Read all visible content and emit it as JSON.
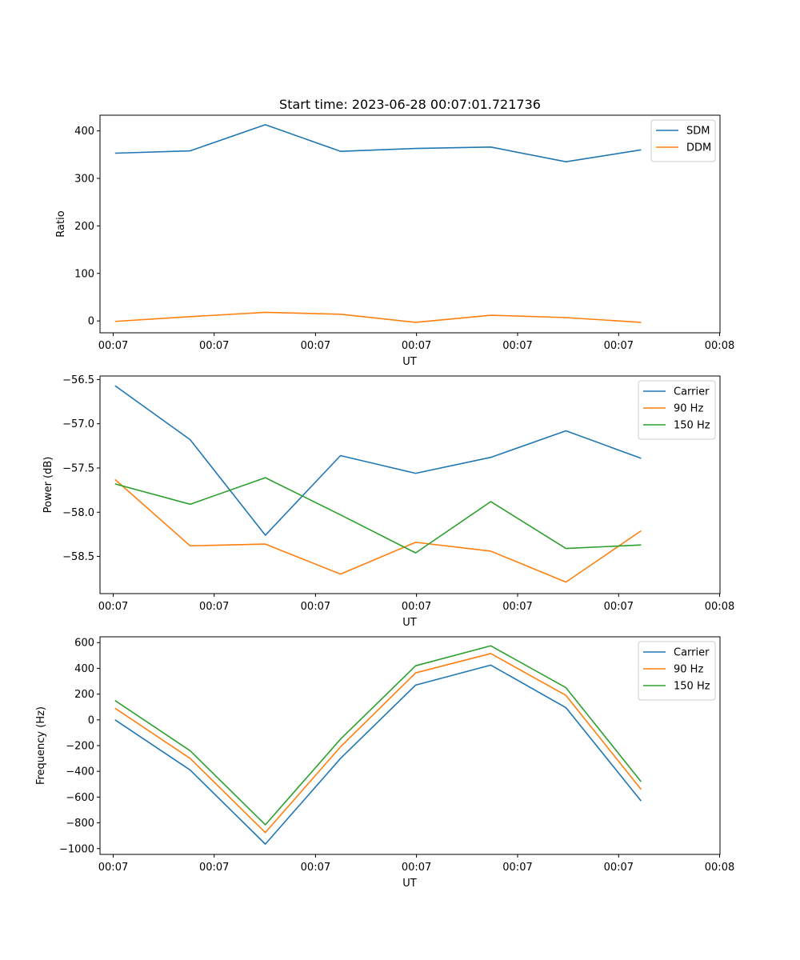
{
  "figure": {
    "title": "Start time: 2023-06-28 00:07:01.721736",
    "x_tick_labels": [
      "00:07",
      "00:07",
      "00:07",
      "00:07",
      "00:07",
      "00:07",
      "00:08"
    ]
  },
  "chart_data": [
    {
      "type": "line",
      "title": "Start time: 2023-06-28 00:07:01.721736",
      "xlabel": "UT",
      "ylabel": "Ratio",
      "x": [
        1,
        2,
        3,
        4,
        5,
        6,
        7,
        8
      ],
      "xlim": [
        0.8,
        9.05
      ],
      "ylim": [
        -25,
        433
      ],
      "yticks": [
        0,
        100,
        200,
        300,
        400
      ],
      "ytick_labels": [
        "0",
        "100",
        "200",
        "300",
        "400"
      ],
      "legend_position": "top-right",
      "grid": false,
      "series": [
        {
          "name": "SDM",
          "color": "#1f77b4",
          "values": [
            353,
            358,
            413,
            357,
            363,
            366,
            335,
            360
          ]
        },
        {
          "name": "DDM",
          "color": "#ff7f0e",
          "values": [
            -1,
            9,
            18,
            14,
            -3,
            12,
            7,
            -3
          ]
        }
      ]
    },
    {
      "type": "line",
      "xlabel": "UT",
      "ylabel": "Power (dB)",
      "x": [
        1,
        2,
        3,
        4,
        5,
        6,
        7,
        8
      ],
      "xlim": [
        0.8,
        9.05
      ],
      "ylim": [
        -58.92,
        -56.46
      ],
      "yticks": [
        -58.5,
        -58.0,
        -57.5,
        -57.0,
        -56.5
      ],
      "ytick_labels": [
        "−58.5",
        "−58.0",
        "−57.5",
        "−57.0",
        "−56.5"
      ],
      "legend_position": "top-right",
      "grid": false,
      "series": [
        {
          "name": "Carrier",
          "color": "#1f77b4",
          "values": [
            -56.57,
            -57.18,
            -58.26,
            -57.36,
            -57.56,
            -57.38,
            -57.08,
            -57.39
          ]
        },
        {
          "name": "90 Hz",
          "color": "#ff7f0e",
          "values": [
            -57.63,
            -58.38,
            -58.36,
            -58.7,
            -58.34,
            -58.44,
            -58.79,
            -58.21
          ]
        },
        {
          "name": "150 Hz",
          "color": "#2ca02c",
          "values": [
            -57.68,
            -57.91,
            -57.61,
            -58.03,
            -58.46,
            -57.88,
            -58.41,
            -58.37
          ]
        }
      ]
    },
    {
      "type": "line",
      "xlabel": "UT",
      "ylabel": "Frequency (Hz)",
      "x": [
        1,
        2,
        3,
        4,
        5,
        6,
        7,
        8
      ],
      "xlim": [
        0.8,
        9.05
      ],
      "ylim": [
        -1045,
        645
      ],
      "yticks": [
        -1000,
        -800,
        -600,
        -400,
        -200,
        0,
        200,
        400,
        600
      ],
      "ytick_labels": [
        "−1000",
        "−800",
        "−600",
        "−400",
        "−200",
        "0",
        "200",
        "400",
        "600"
      ],
      "legend_position": "top-right",
      "grid": false,
      "series": [
        {
          "name": "Carrier",
          "color": "#1f77b4",
          "values": [
            0,
            -390,
            -965,
            -300,
            270,
            425,
            95,
            -630
          ]
        },
        {
          "name": "90 Hz",
          "color": "#ff7f0e",
          "values": [
            90,
            -300,
            -875,
            -210,
            365,
            515,
            190,
            -540
          ]
        },
        {
          "name": "150 Hz",
          "color": "#2ca02c",
          "values": [
            150,
            -240,
            -815,
            -150,
            420,
            575,
            250,
            -480
          ]
        }
      ]
    }
  ]
}
